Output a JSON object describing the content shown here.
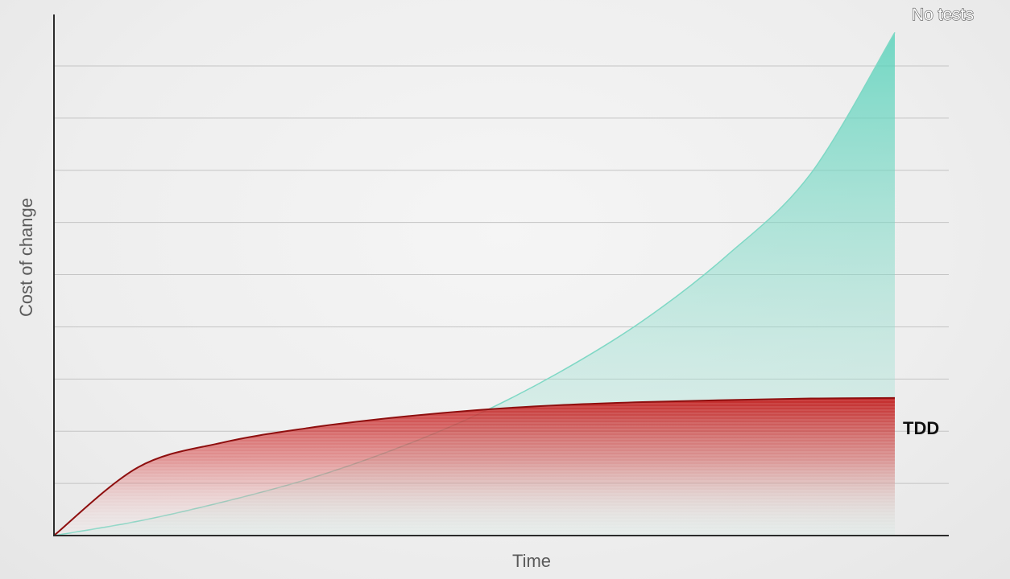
{
  "chart_data": {
    "type": "area",
    "title": "",
    "xlabel": "Time",
    "ylabel": "Cost of change",
    "xlim": [
      0,
      1
    ],
    "ylim": [
      0,
      10
    ],
    "grid": true,
    "gridlines_y": [
      1,
      2,
      3,
      4,
      5,
      6,
      7,
      8,
      9
    ],
    "series": [
      {
        "name": "No tests",
        "color": "#6fd3c0",
        "x": [
          0,
          0.1,
          0.2,
          0.3,
          0.4,
          0.5,
          0.6,
          0.7,
          0.8,
          0.9,
          1.0
        ],
        "values": [
          0,
          0.28,
          0.65,
          1.09,
          1.65,
          2.33,
          3.17,
          4.18,
          5.45,
          7.05,
          9.8
        ]
      },
      {
        "name": "TDD",
        "color": "#b01818",
        "x": [
          0,
          0.1,
          0.2,
          0.3,
          0.4,
          0.5,
          0.6,
          0.7,
          0.8,
          0.9,
          1.0
        ],
        "values": [
          0,
          1.33,
          1.81,
          2.09,
          2.29,
          2.44,
          2.54,
          2.6,
          2.64,
          2.67,
          2.68
        ]
      }
    ]
  }
}
